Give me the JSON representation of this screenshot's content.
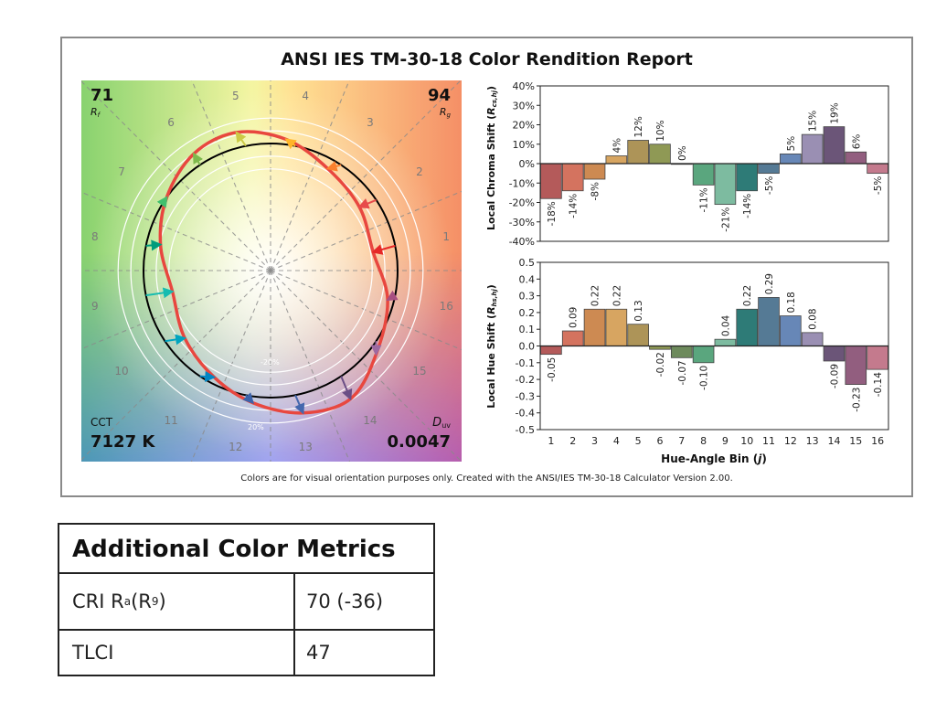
{
  "report": {
    "title": "ANSI IES TM-30-18 Color Rendition Report",
    "footer": "Colors are for visual orientation purposes only. Created with the ANSI/IES TM-30-18 Calculator Version 2.00."
  },
  "vector_graphic": {
    "rf_value": "71",
    "rf_label_main": "R",
    "rf_label_sub": "f",
    "rg_value": "94",
    "rg_label_main": "R",
    "rg_label_sub": "g",
    "cct_label": "CCT",
    "cct_value": "7127 K",
    "duv_label_main": "D",
    "duv_label_sub": "uv",
    "duv_value": "0.0047",
    "ring_label_inner": "-20%",
    "ring_label_outer": "20%",
    "bin_labels": [
      "1",
      "2",
      "3",
      "4",
      "5",
      "6",
      "7",
      "8",
      "9",
      "10",
      "11",
      "12",
      "13",
      "14",
      "15",
      "16"
    ],
    "bin_colors": [
      "#e62828",
      "#e74b4b",
      "#fb812e",
      "#ffb529",
      "#cbca46",
      "#7eb94c",
      "#41c06d",
      "#009c7c",
      "#16bcb0",
      "#00a4bf",
      "#0085c3",
      "#3b62aa",
      "#4568ae",
      "#6a4e85",
      "#9d69a1",
      "#a74f81"
    ],
    "reference_color": "#000000",
    "test_color": "#e8473f"
  },
  "chart_data": [
    {
      "type": "bar",
      "title": "",
      "ylabel": "Local Chroma Shift (Rcs,hj)",
      "ylabel_main": "Local Chroma Shift (",
      "ylabel_sym": "R",
      "ylabel_sub": "cs,hj",
      "ylabel_end": ")",
      "xlabel": "",
      "ylim": [
        -40,
        40
      ],
      "yticks": [
        "40%",
        "30%",
        "20%",
        "10%",
        "0%",
        "-10%",
        "-20%",
        "-30%",
        "-40%"
      ],
      "ytick_values": [
        40,
        30,
        20,
        10,
        0,
        -10,
        -20,
        -30,
        -40
      ],
      "categories": [
        "1",
        "2",
        "3",
        "4",
        "5",
        "6",
        "7",
        "8",
        "9",
        "10",
        "11",
        "12",
        "13",
        "14",
        "15",
        "16"
      ],
      "values": [
        -18,
        -14,
        -8,
        4,
        12,
        10,
        0,
        -11,
        -21,
        -14,
        -5,
        5,
        15,
        19,
        6,
        -5
      ],
      "value_labels": [
        "-18%",
        "-14%",
        "-8%",
        "4%",
        "12%",
        "10%",
        "0%",
        "-11%",
        "-21%",
        "-14%",
        "-5%",
        "5%",
        "15%",
        "19%",
        "6%",
        "-5%"
      ],
      "bar_colors": [
        "#b45a5a",
        "#d4735f",
        "#cd8a52",
        "#d7a561",
        "#ad9458",
        "#8f9955",
        "#6d8a5c",
        "#5aa67e",
        "#7dbba0",
        "#2e7b77",
        "#557a95",
        "#6787b7",
        "#9a8fb3",
        "#6b5578",
        "#925e7f",
        "#c47a8d"
      ]
    },
    {
      "type": "bar",
      "title": "",
      "ylabel": "Local Hue Shift (Rhs,hj)",
      "ylabel_main": "Local Hue Shift (",
      "ylabel_sym": "R",
      "ylabel_sub": "hs,hj",
      "ylabel_end": ")",
      "xlabel": "Hue-Angle Bin (j)",
      "xlabel_main": "Hue-Angle Bin (",
      "xlabel_sym": "j",
      "xlabel_end": ")",
      "ylim": [
        -0.5,
        0.5
      ],
      "yticks": [
        "0.5",
        "0.4",
        "0.3",
        "0.2",
        "0.1",
        "0.0",
        "-0.1",
        "-0.2",
        "-0.3",
        "-0.4",
        "-0.5"
      ],
      "ytick_values": [
        0.5,
        0.4,
        0.3,
        0.2,
        0.1,
        0.0,
        -0.1,
        -0.2,
        -0.3,
        -0.4,
        -0.5
      ],
      "categories": [
        "1",
        "2",
        "3",
        "4",
        "5",
        "6",
        "7",
        "8",
        "9",
        "10",
        "11",
        "12",
        "13",
        "14",
        "15",
        "16"
      ],
      "values": [
        -0.05,
        0.09,
        0.22,
        0.22,
        0.13,
        -0.02,
        -0.07,
        -0.1,
        0.04,
        0.22,
        0.29,
        0.18,
        0.08,
        -0.09,
        -0.23,
        -0.14
      ],
      "value_labels": [
        "-0.05",
        "0.09",
        "0.22",
        "0.22",
        "0.13",
        "-0.02",
        "-0.07",
        "-0.10",
        "0.04",
        "0.22",
        "0.29",
        "0.18",
        "0.08",
        "-0.09",
        "-0.23",
        "-0.14"
      ],
      "bar_colors": [
        "#b45a5a",
        "#d4735f",
        "#cd8a52",
        "#d7a561",
        "#ad9458",
        "#8f9955",
        "#6d8a5c",
        "#5aa67e",
        "#7dbba0",
        "#2e7b77",
        "#557a95",
        "#6787b7",
        "#9a8fb3",
        "#6b5578",
        "#925e7f",
        "#c47a8d"
      ]
    }
  ],
  "metrics_table": {
    "header": "Additional Color Metrics",
    "rows": [
      {
        "label_main": "CRI R",
        "label_sub1": "a",
        "label_mid": " (R",
        "label_sub2": "9",
        "label_end": ")",
        "value": "70 (-36)"
      },
      {
        "label_main": "TLCI",
        "value": "47"
      }
    ]
  }
}
